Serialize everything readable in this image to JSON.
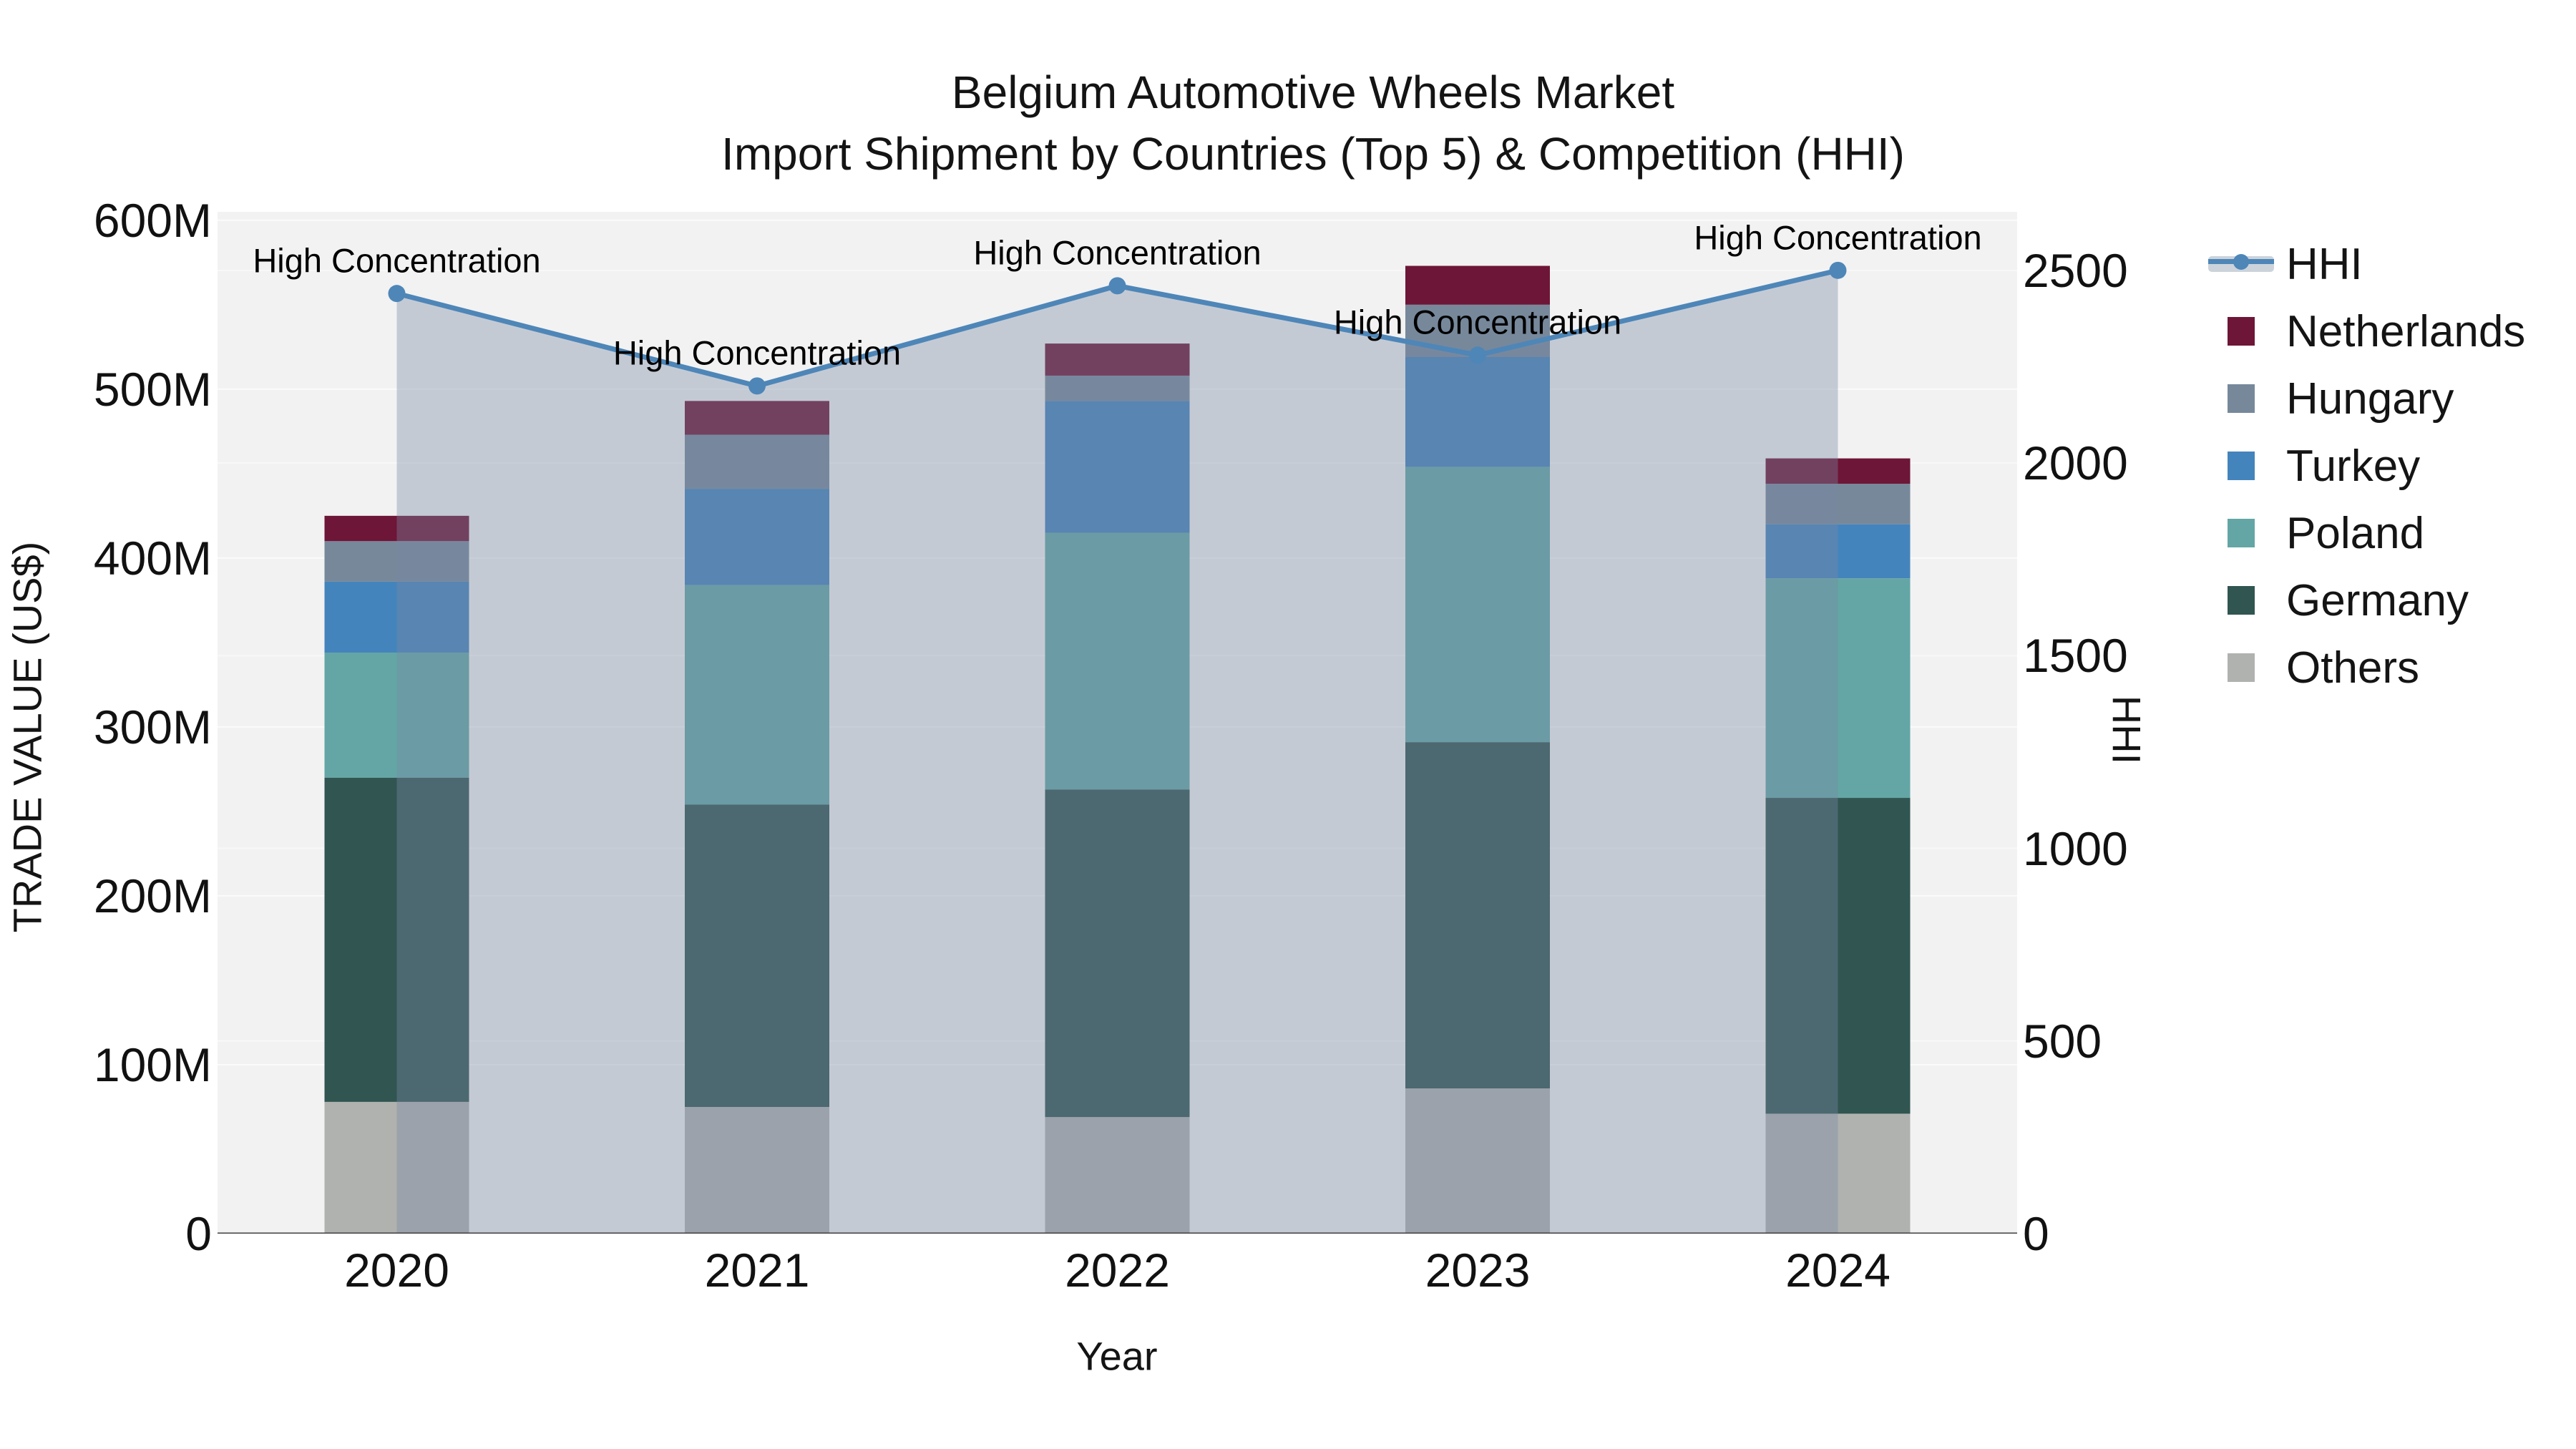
{
  "title": {
    "line1": "Belgium Automotive Wheels Market",
    "line2": "Import Shipment by Countries (Top 5) & Competition (HHI)"
  },
  "axes": {
    "y_left": {
      "title": "TRADE VALUE (US$)",
      "tick_labels": [
        "600M",
        "500M",
        "400M",
        "300M",
        "200M",
        "100M",
        "0"
      ],
      "tick_values": [
        600,
        500,
        400,
        300,
        200,
        100,
        0
      ]
    },
    "y_right": {
      "title": "HHI",
      "tick_labels": [
        "2500",
        "2000",
        "1500",
        "1000",
        "500",
        "0"
      ],
      "tick_values": [
        2500,
        2000,
        1500,
        1000,
        500,
        0
      ]
    },
    "x": {
      "title": "Year",
      "tick_labels": [
        "2020",
        "2021",
        "2022",
        "2023",
        "2024"
      ]
    }
  },
  "legend": {
    "items": [
      {
        "label": "HHI",
        "type": "line",
        "color": "#4e86b8"
      },
      {
        "label": "Netherlands",
        "type": "swatch",
        "color": "#6e1637"
      },
      {
        "label": "Hungary",
        "type": "swatch",
        "color": "#77889b"
      },
      {
        "label": "Turkey",
        "type": "swatch",
        "color": "#4484bc"
      },
      {
        "label": "Poland",
        "type": "swatch",
        "color": "#63a6a5"
      },
      {
        "label": "Germany",
        "type": "swatch",
        "color": "#315551"
      },
      {
        "label": "Others",
        "type": "swatch",
        "color": "#b0b2b0"
      }
    ]
  },
  "annotation_text": "High Concentration",
  "chart_data": {
    "type": "combo",
    "subtypes": [
      "stacked-bar",
      "line+area"
    ],
    "title": "Belgium Automotive Wheels Market — Import Shipment by Countries (Top 5) & Competition (HHI)",
    "categories": [
      "2020",
      "2021",
      "2022",
      "2023",
      "2024"
    ],
    "xlabel": "Year",
    "ylabel_left": "TRADE VALUE (US$)",
    "ylabel_right": "HHI",
    "unit": "US$ millions",
    "ylim_left": [
      0,
      605
    ],
    "ylim_right": [
      0,
      2652
    ],
    "grid": "horizontal gridlines for both axes (100M steps left, 500 steps right)",
    "legend_position": "right",
    "stack_order_bottom_to_top": [
      "Others",
      "Germany",
      "Poland",
      "Turkey",
      "Hungary",
      "Netherlands"
    ],
    "series": [
      {
        "name": "Others",
        "color": "#b0b2b0",
        "values": [
          78,
          75,
          69,
          86,
          71
        ]
      },
      {
        "name": "Germany",
        "color": "#315551",
        "values": [
          192,
          179,
          194,
          205,
          187
        ]
      },
      {
        "name": "Poland",
        "color": "#63a6a5",
        "values": [
          74,
          130,
          152,
          163,
          130
        ]
      },
      {
        "name": "Turkey",
        "color": "#4484bc",
        "values": [
          42,
          57,
          78,
          65,
          32
        ]
      },
      {
        "name": "Hungary",
        "color": "#77889b",
        "values": [
          24,
          32,
          15,
          31,
          24
        ]
      },
      {
        "name": "Netherlands",
        "color": "#6e1637",
        "values": [
          15,
          20,
          19,
          23,
          15
        ]
      }
    ],
    "bar_totals": [
      425,
      493,
      527,
      573,
      459
    ],
    "line_series": {
      "name": "HHI",
      "axis": "right",
      "color": "#4e86b8",
      "area_fill": "rgba(120,136,162,0.38)",
      "values": [
        2440,
        2200,
        2460,
        2280,
        2500
      ],
      "annotations": [
        "High Concentration",
        "High Concentration",
        "High Concentration",
        "High Concentration",
        "High Concentration"
      ]
    },
    "plot_background": "#f2f2f2",
    "axis_line_color": "#404040"
  }
}
